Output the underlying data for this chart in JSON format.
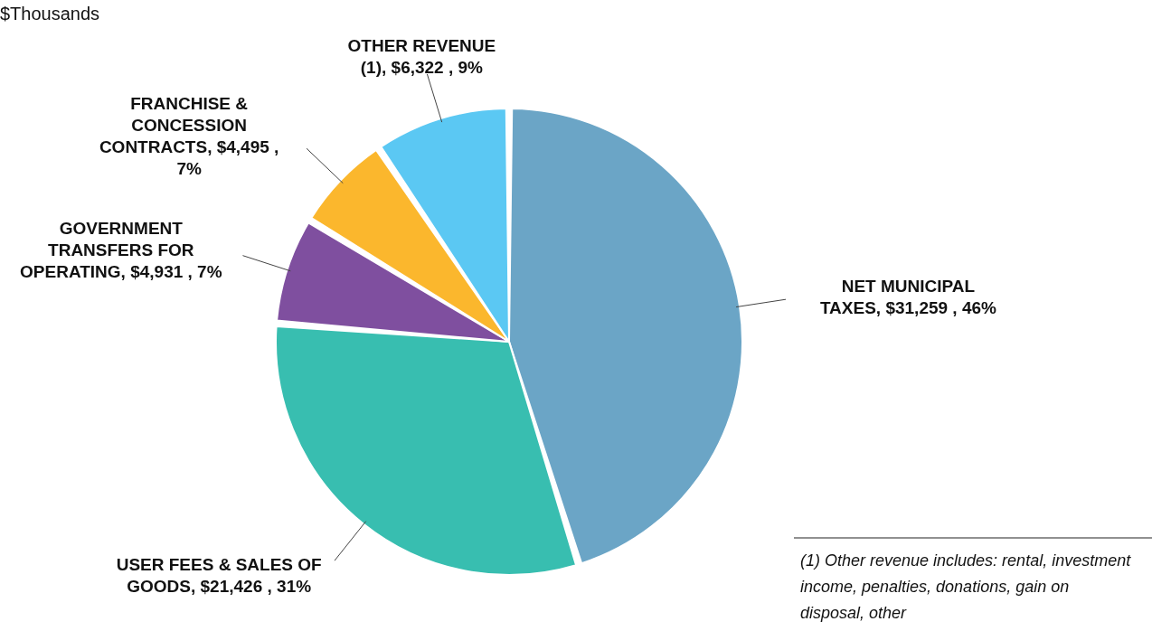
{
  "chart_data": {
    "type": "pie",
    "categories": [
      "NET MUNICIPAL TAXES",
      "USER FEES & SALES OF GOODS",
      "GOVERNMENT TRANSFERS FOR OPERATING",
      "FRANCHISE & CONCESSION CONTRACTS",
      "OTHER REVENUE (1)"
    ],
    "values": [
      31259,
      21426,
      4931,
      4495,
      6322
    ],
    "value_labels": [
      "$31,259 , 46%",
      "$21,426 , 31%",
      "$4,931 , 7%",
      "$4,495 , 7%",
      "$6,322 , 9%"
    ],
    "colors": [
      "#6ba5c6",
      "#38beb0",
      "#7f4f9f",
      "#fbb72d",
      "#5bc8f3"
    ],
    "annotations": [
      "$Thousands",
      "(1) Other revenue includes: rental, investment income, penalties, donations, gain on disposal, other"
    ]
  }
}
